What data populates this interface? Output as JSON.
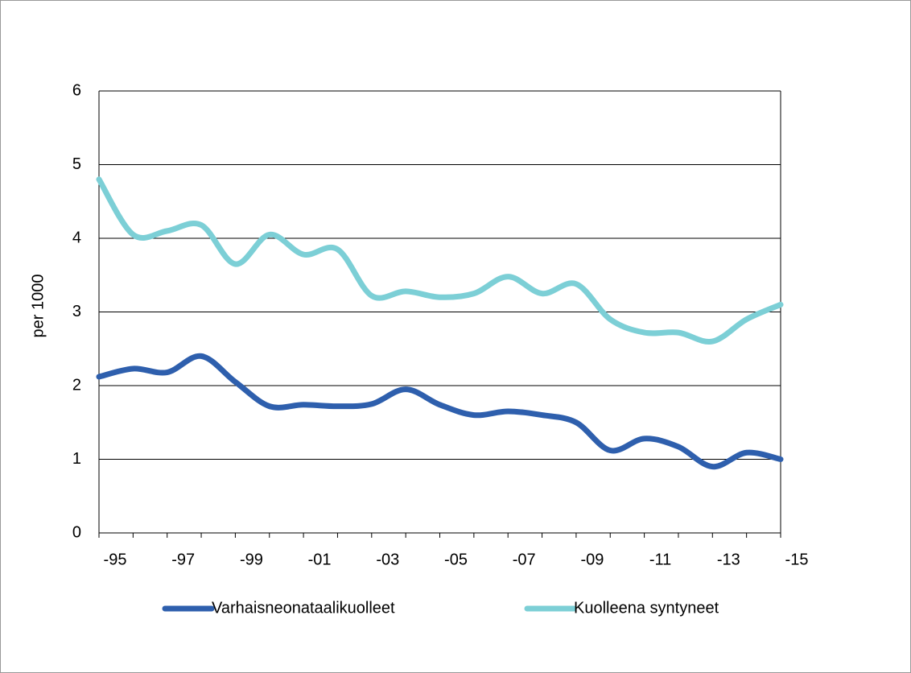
{
  "chart_data": {
    "type": "line",
    "ylabel": "per 1000",
    "categories": [
      "-95",
      null,
      "-97",
      null,
      "-99",
      null,
      "-01",
      null,
      "-03",
      null,
      "-05",
      null,
      "-07",
      null,
      "-09",
      null,
      "-11",
      null,
      "-13",
      null,
      "-15"
    ],
    "series": [
      {
        "name": "Varhaisneonataalikuolleet",
        "color": "#2e5fad",
        "values": [
          2.12,
          2.23,
          2.18,
          2.4,
          2.05,
          1.72,
          1.74,
          1.72,
          1.75,
          1.95,
          1.74,
          1.6,
          1.65,
          1.6,
          1.5,
          1.12,
          1.28,
          1.17,
          0.9,
          1.09,
          1.0
        ]
      },
      {
        "name": "Kuolleena syntyneet",
        "color": "#7ccfd6",
        "values": [
          4.8,
          4.05,
          4.1,
          4.18,
          3.65,
          4.05,
          3.78,
          3.85,
          3.22,
          3.28,
          3.2,
          3.25,
          3.48,
          3.25,
          3.38,
          2.9,
          2.72,
          2.72,
          2.6,
          2.9,
          3.1
        ]
      }
    ],
    "ylim": [
      0,
      6
    ],
    "yticks": [
      0,
      1,
      2,
      3,
      4,
      5,
      6
    ],
    "grid": true
  }
}
